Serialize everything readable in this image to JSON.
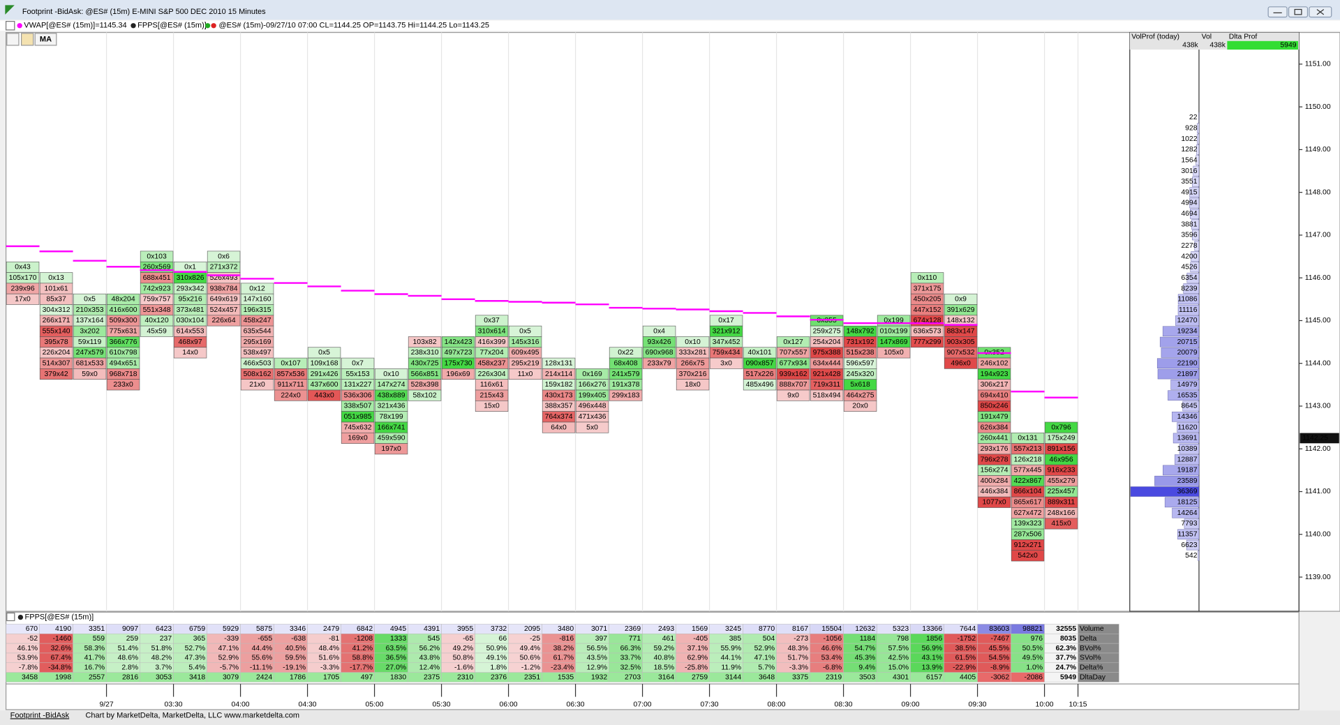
{
  "window": {
    "title": "Footprint -BidAsk: @ES# (15m) E-MINI S&P 500 DEC 2010 15 Minutes",
    "indicators": [
      "VWAP[@ES# (15m)]=1145.34",
      "FPPS[@ES# (15m)]",
      "@ES# (15m)-09/27/10 07:00 CL=1144.25 OP=1143.75 Hi=1144.25 Lo=1143.25"
    ],
    "ma_button": "MA",
    "panel_label": "FPPS[@ES# (15m)]",
    "tab": "Footprint -BidAsk",
    "credit": "Chart by MarketDelta, MarketDelta, LLC www.marketdelta.com"
  },
  "chart_data": {
    "type": "footprint",
    "ylim": [
      1138.2,
      1151.74
    ],
    "yticks": [
      {
        "value": 1139,
        "label": "1139.00"
      },
      {
        "value": 1140,
        "label": "1140.00"
      },
      {
        "value": 1141,
        "label": "1141.00"
      },
      {
        "value": 1142,
        "label": "1142.00"
      },
      {
        "value": 1143,
        "label": "1143.00"
      },
      {
        "value": 1144,
        "label": "1144.00"
      },
      {
        "value": 1145,
        "label": "1145.00"
      },
      {
        "value": 1146,
        "label": "1146.00"
      },
      {
        "value": 1147,
        "label": "1147.00"
      },
      {
        "value": 1148,
        "label": "1148.00"
      },
      {
        "value": 1149,
        "label": "1149.00"
      },
      {
        "value": 1150,
        "label": "1150.00"
      },
      {
        "value": 1151,
        "label": "1151.00"
      }
    ],
    "last_price": {
      "value": 1142.25,
      "label": "1142.25"
    },
    "x_labels": [
      null,
      null,
      "9/27",
      null,
      "03:30",
      null,
      "04:00",
      null,
      "04:30",
      null,
      "05:00",
      null,
      "05:30",
      null,
      "06:00",
      null,
      "06:30",
      null,
      "07:00",
      null,
      "07:30",
      null,
      "08:00",
      null,
      "08:30",
      null,
      "09:00",
      null,
      "09:30",
      null,
      "10:00",
      "10:15"
    ],
    "columns": [
      {
        "top": 1146.25,
        "cells": [
          "0x43",
          "105x170",
          "239x96",
          "17x0"
        ]
      },
      {
        "top": 1146.0,
        "cells": [
          "0x13",
          "101x61",
          "85x37",
          "304x312",
          "266x171",
          "555x140",
          "395x78",
          "226x204",
          "514x307",
          "379x42"
        ]
      },
      {
        "top": 1145.5,
        "cells": [
          "0x5",
          "210x353",
          "137x164",
          "3x202",
          "59x119",
          "247x579",
          "681x533",
          "59x0"
        ]
      },
      {
        "top": 1145.5,
        "cells": [
          "48x204",
          "416x600",
          "509x300",
          "775x631",
          "366x776",
          "610x798",
          "494x651",
          "968x718",
          "233x0"
        ]
      },
      {
        "top": 1146.5,
        "cells": [
          "0x103",
          "260x569",
          "688x451",
          "742x923",
          "759x757",
          "551x348",
          "40x120",
          "45x59"
        ]
      },
      {
        "top": 1146.25,
        "cells": [
          "0x1",
          "310x826",
          "293x342",
          "95x216",
          "373x481",
          "030x104",
          "614x553",
          "468x97",
          "14x0"
        ]
      },
      {
        "top": 1146.5,
        "cells": [
          "0x6",
          "271x372",
          "526x493",
          "938x784",
          "649x619",
          "524x457",
          "226x64"
        ]
      },
      {
        "top": 1145.75,
        "cells": [
          "0x12",
          "147x160",
          "196x315",
          "458x247",
          "635x544",
          "295x169",
          "538x497",
          "466x503",
          "508x162",
          "21x0"
        ]
      },
      {
        "top": 1144.0,
        "cells": [
          "0x107",
          "857x536",
          "911x711",
          "224x0"
        ]
      },
      {
        "top": 1144.25,
        "cells": [
          "0x5",
          "109x168",
          "291x426",
          "437x600",
          "443x0"
        ]
      },
      {
        "top": 1144.0,
        "cells": [
          "0x7",
          "55x153",
          "131x227",
          "536x306",
          "338x507",
          "051x985",
          "745x632",
          "169x0"
        ]
      },
      {
        "top": 1143.75,
        "cells": [
          "0x10",
          "147x274",
          "438x889",
          "321x436",
          "78x199",
          "166x741",
          "459x590",
          "197x0"
        ]
      },
      {
        "top": 1144.5,
        "cells": [
          "103x82",
          "238x310",
          "430x725",
          "566x851",
          "528x398",
          "58x102"
        ]
      },
      {
        "top": 1144.5,
        "cells": [
          "142x423",
          "497x723",
          "175x730",
          "196x69"
        ]
      },
      {
        "top": 1145.0,
        "cells": [
          "0x37",
          "310x614",
          "416x399",
          "77x204",
          "458x237",
          "226x304",
          "116x61",
          "215x43",
          "15x0"
        ]
      },
      {
        "top": 1144.75,
        "cells": [
          "0x5",
          "145x316",
          "609x495",
          "295x219",
          "11x0"
        ]
      },
      {
        "top": 1144.0,
        "cells": [
          "128x131",
          "214x114",
          "159x182",
          "430x173",
          "388x357",
          "764x374",
          "64x0"
        ]
      },
      {
        "top": 1143.75,
        "cells": [
          "0x169",
          "166x276",
          "199x405",
          "496x448",
          "471x436",
          "5x0"
        ]
      },
      {
        "top": 1144.25,
        "cells": [
          "0x22",
          "68x408",
          "241x579",
          "191x378",
          "299x183"
        ]
      },
      {
        "top": 1144.75,
        "cells": [
          "0x4",
          "93x426",
          "690x968",
          "233x79"
        ]
      },
      {
        "top": 1144.5,
        "cells": [
          "0x10",
          "333x281",
          "266x75",
          "370x216",
          "18x0"
        ]
      },
      {
        "top": 1145.0,
        "cells": [
          "0x17",
          "321x912",
          "347x452",
          "759x434",
          "3x0"
        ]
      },
      {
        "top": 1144.25,
        "cells": [
          "40x101",
          "090x857",
          "517x226",
          "485x496"
        ]
      },
      {
        "top": 1144.5,
        "cells": [
          "0x127",
          "707x557",
          "677x934",
          "939x162",
          "888x707",
          "9x0"
        ]
      },
      {
        "top": 1145.0,
        "cells": [
          "0x355",
          "259x275",
          "254x204",
          "975x388",
          "634x444",
          "921x428",
          "719x311",
          "518x494"
        ]
      },
      {
        "top": 1144.75,
        "cells": [
          "148x792",
          "731x192",
          "515x238",
          "596x597",
          "245x320",
          "5x618",
          "464x275",
          "20x0"
        ]
      },
      {
        "top": 1145.0,
        "cells": [
          "0x199",
          "010x199",
          "147x869",
          "105x0"
        ]
      },
      {
        "top": 1146.0,
        "cells": [
          "0x110",
          "371x175",
          "450x205",
          "447x152",
          "674x128",
          "636x573",
          "777x299"
        ]
      },
      {
        "top": 1145.5,
        "cells": [
          "0x9",
          "391x629",
          "148x132",
          "883x147",
          "903x305",
          "907x532",
          "496x0"
        ]
      },
      {
        "top": 1144.25,
        "cells": [
          "0x352",
          "246x102",
          "194x923",
          "306x217",
          "694x410",
          "850x246",
          "191x479",
          "626x384",
          "260x441",
          "293x176",
          "796x278",
          "156x274",
          "400x284",
          "446x384",
          "1077x0"
        ]
      },
      {
        "top": 1142.25,
        "cells": [
          "0x131",
          "557x213",
          "126x218",
          "577x445",
          "422x867",
          "866x104",
          "865x617",
          "627x472",
          "139x323",
          "287x506",
          "912x271",
          "542x0"
        ]
      },
      {
        "top": 1142.5,
        "cells": [
          "0x796",
          "175x249",
          "891x156",
          "46x956",
          "916x233",
          "455x279",
          "225x457",
          "889x311",
          "248x166",
          "415x0"
        ]
      }
    ],
    "vwap": {
      "color": "#ff00ff",
      "values": [
        1146.74,
        1146.62,
        1146.4,
        1146.26,
        1146.18,
        1146.14,
        1146.06,
        1145.98,
        1145.88,
        1145.8,
        1145.7,
        1145.62,
        1145.58,
        1145.5,
        1145.46,
        1145.44,
        1145.42,
        1145.38,
        1145.3,
        1145.28,
        1145.26,
        1145.22,
        1145.18,
        1145.1,
        1145.02,
        1144.94,
        1144.94,
        1144.94,
        1144.9,
        1144.24,
        1143.34,
        1143.2
      ]
    },
    "volume_profile": {
      "headers": [
        "VolProf (today)",
        "Vol",
        "Dlta Prof"
      ],
      "totals": [
        "438k",
        "438k",
        "5949"
      ],
      "top": 1149.75,
      "values": [
        22,
        928,
        1022,
        1282,
        1564,
        3016,
        3551,
        4915,
        4994,
        4694,
        3881,
        3596,
        2278,
        4200,
        4526,
        6354,
        8239,
        11086,
        11116,
        12470,
        19234,
        20715,
        20079,
        22190,
        21897,
        14979,
        16535,
        8645,
        14346,
        11620,
        13691,
        10389,
        12887,
        19187,
        23589,
        36369,
        18125,
        14264,
        7793,
        11357,
        6623,
        542
      ]
    }
  },
  "stats": {
    "rows": [
      {
        "name": "Volume",
        "values": [
          670,
          4190,
          3351,
          9097,
          6423,
          6759,
          5929,
          5875,
          3346,
          2479,
          6842,
          4945,
          4391,
          3955,
          3732,
          2095,
          3480,
          3071,
          2369,
          2493,
          1569,
          3245,
          8770,
          8167,
          15504,
          12632,
          5323,
          13366,
          7644,
          83603,
          98821,
          32555
        ]
      },
      {
        "name": "Delta",
        "values": [
          -52,
          -1460,
          559,
          259,
          237,
          365,
          -339,
          -655,
          -638,
          -81,
          -1208,
          1333,
          545,
          -65,
          66,
          -25,
          -816,
          397,
          771,
          461,
          -405,
          385,
          504,
          -273,
          -1056,
          1184,
          798,
          1856,
          -1752,
          -7467,
          976,
          8035
        ]
      },
      {
        "name": "BVol%",
        "values": [
          "46.1%",
          "32.6%",
          "58.3%",
          "51.4%",
          "51.8%",
          "52.7%",
          "47.1%",
          "44.4%",
          "40.5%",
          "48.4%",
          "41.2%",
          "63.5%",
          "56.2%",
          "49.2%",
          "50.9%",
          "49.4%",
          "38.2%",
          "56.5%",
          "66.3%",
          "59.2%",
          "37.1%",
          "55.9%",
          "52.9%",
          "48.3%",
          "46.6%",
          "54.7%",
          "57.5%",
          "56.9%",
          "38.5%",
          "45.5%",
          "50.5%",
          "62.3%"
        ]
      },
      {
        "name": "SVol%",
        "values": [
          "53.9%",
          "67.4%",
          "41.7%",
          "48.6%",
          "48.2%",
          "47.3%",
          "52.9%",
          "55.6%",
          "59.5%",
          "51.6%",
          "58.8%",
          "36.5%",
          "43.8%",
          "50.8%",
          "49.1%",
          "50.6%",
          "61.7%",
          "43.5%",
          "33.7%",
          "40.8%",
          "62.9%",
          "44.1%",
          "47.1%",
          "51.7%",
          "53.4%",
          "45.3%",
          "42.5%",
          "43.1%",
          "61.5%",
          "54.5%",
          "49.5%",
          "37.7%"
        ]
      },
      {
        "name": "Delta%",
        "values": [
          "-7.8%",
          "-34.8%",
          "16.7%",
          "2.8%",
          "3.7%",
          "5.4%",
          "-5.7%",
          "-11.1%",
          "-19.1%",
          "-3.3%",
          "-17.7%",
          "27.0%",
          "12.4%",
          "-1.6%",
          "1.8%",
          "-1.2%",
          "-23.4%",
          "12.9%",
          "32.5%",
          "18.5%",
          "-25.8%",
          "11.9%",
          "5.7%",
          "-3.3%",
          "-6.8%",
          "9.4%",
          "15.0%",
          "13.9%",
          "-22.9%",
          "-8.9%",
          "1.0%",
          "24.7%"
        ]
      },
      {
        "name": "DltaDay",
        "values": [
          3458,
          1998,
          2557,
          2816,
          3053,
          3418,
          3079,
          2424,
          1786,
          1705,
          497,
          1830,
          2375,
          2310,
          2376,
          2351,
          1535,
          1932,
          2703,
          3164,
          2759,
          3144,
          3648,
          3375,
          2319,
          3503,
          4301,
          6157,
          4405,
          -3062,
          -2086,
          5949
        ]
      }
    ]
  }
}
